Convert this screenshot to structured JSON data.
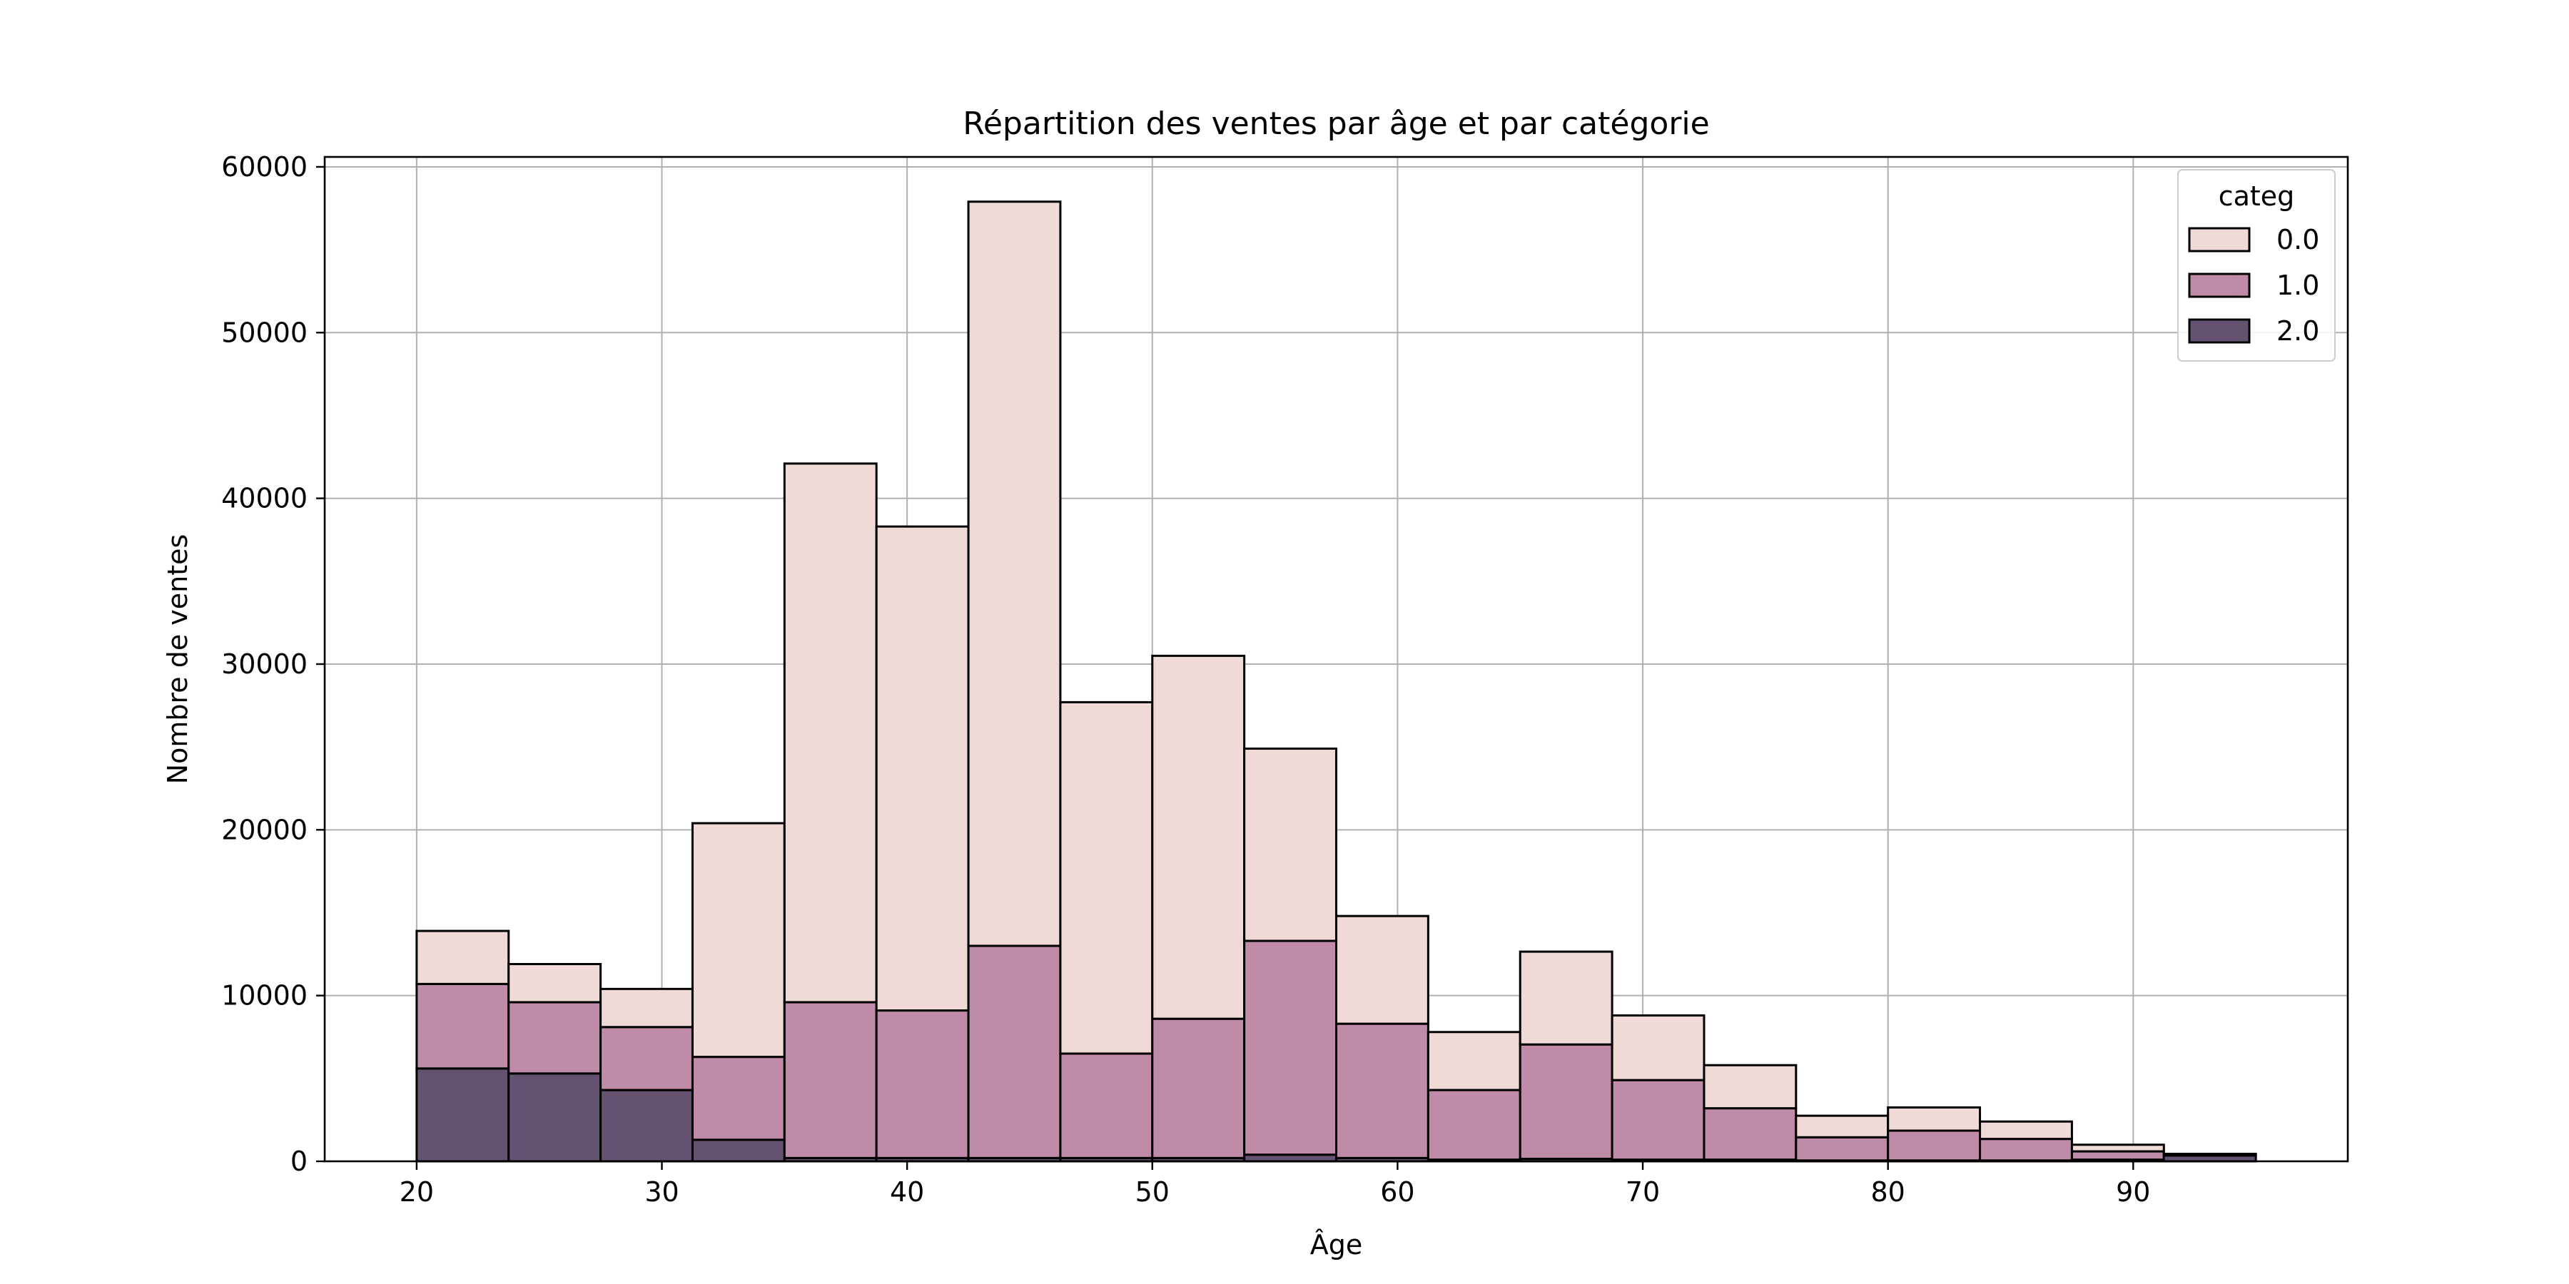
{
  "chart_data": {
    "type": "bar",
    "stacked": true,
    "title": "Répartition des ventes par âge et par catégorie",
    "xlabel": "Âge",
    "ylabel": "Nombre de ventes",
    "xlim": [
      16.25,
      98.75
    ],
    "ylim": [
      0,
      60600
    ],
    "xticks": [
      20,
      30,
      40,
      50,
      60,
      70,
      80,
      90
    ],
    "yticks": [
      0,
      10000,
      20000,
      30000,
      40000,
      50000,
      60000
    ],
    "grid": true,
    "legend": {
      "title": "categ",
      "placement": "top-right"
    },
    "bins": [
      [
        20.0,
        23.75
      ],
      [
        23.75,
        27.5
      ],
      [
        27.5,
        31.25
      ],
      [
        31.25,
        35.0
      ],
      [
        35.0,
        38.75
      ],
      [
        38.75,
        42.5
      ],
      [
        42.5,
        46.25
      ],
      [
        46.25,
        50.0
      ],
      [
        50.0,
        53.75
      ],
      [
        53.75,
        57.5
      ],
      [
        57.5,
        61.25
      ],
      [
        61.25,
        65.0
      ],
      [
        65.0,
        68.75
      ],
      [
        68.75,
        72.5
      ],
      [
        72.5,
        76.25
      ],
      [
        76.25,
        80.0
      ],
      [
        80.0,
        83.75
      ],
      [
        83.75,
        87.5
      ],
      [
        87.5,
        91.25
      ],
      [
        91.25,
        95.0
      ]
    ],
    "series": [
      {
        "name": "2.0",
        "color": "#645270",
        "values": [
          5600,
          5300,
          4300,
          1300,
          200,
          200,
          200,
          200,
          200,
          400,
          200,
          100,
          150,
          100,
          100,
          50,
          50,
          50,
          100,
          350
        ]
      },
      {
        "name": "1.0",
        "color": "#c08ba9",
        "values": [
          5100,
          4300,
          3800,
          5000,
          9400,
          8900,
          12800,
          6300,
          8400,
          12900,
          8100,
          4200,
          6900,
          4800,
          3100,
          1400,
          1800,
          1300,
          500,
          50
        ]
      },
      {
        "name": "0.0",
        "color": "#f0dad6",
        "values": [
          3200,
          2300,
          2300,
          14100,
          32500,
          29200,
          44900,
          21200,
          21900,
          11600,
          6500,
          3500,
          5600,
          3900,
          2600,
          1300,
          1400,
          1050,
          400,
          50
        ]
      }
    ]
  }
}
